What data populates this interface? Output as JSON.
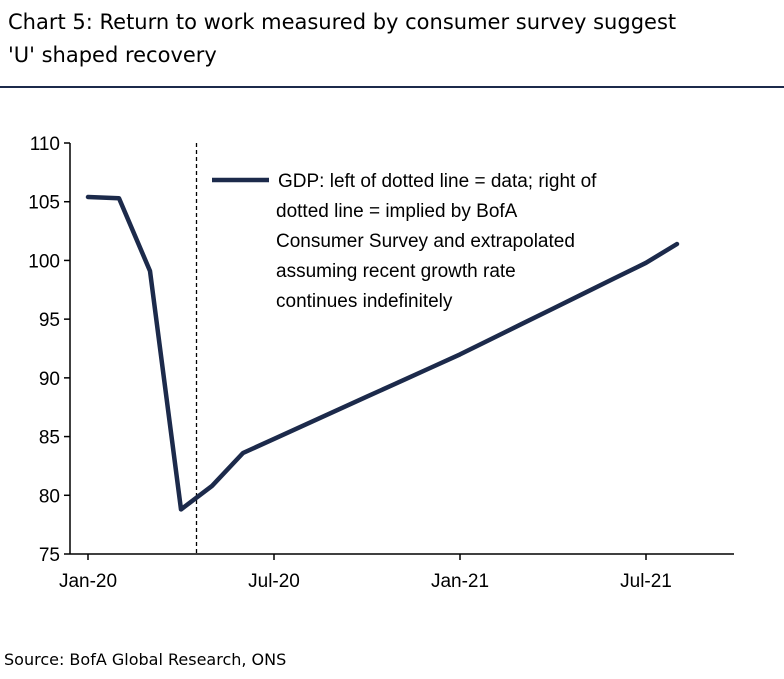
{
  "title": {
    "line1": "Chart 5: Return to work measured by consumer survey suggest",
    "line2": "'U' shaped recovery"
  },
  "source": "Source: BofA Global Research, ONS",
  "colors": {
    "series": "#1c2a4b",
    "rule": "#1c2a4b",
    "axis": "#000000"
  },
  "chart_data": {
    "type": "line",
    "title": "Chart 5: Return to work measured by consumer survey suggest 'U' shaped recovery",
    "xlabel": "",
    "ylabel": "",
    "ylim": [
      75,
      110
    ],
    "yticks": [
      75,
      80,
      85,
      90,
      95,
      100,
      105,
      110
    ],
    "xlim_months": [
      0,
      20
    ],
    "xticks": [
      {
        "label": "Jan-20",
        "month": 0
      },
      {
        "label": "Jul-20",
        "month": 6
      },
      {
        "label": "Jan-21",
        "month": 12
      },
      {
        "label": "Jul-21",
        "month": 18
      }
    ],
    "divider": {
      "month": 3.5,
      "style": "dotted",
      "meaning": "left = data; right = implied"
    },
    "series": [
      {
        "name": "GDP",
        "points": [
          {
            "month": 0,
            "value": 105.4
          },
          {
            "month": 1,
            "value": 105.3
          },
          {
            "month": 2,
            "value": 99.1
          },
          {
            "month": 3,
            "value": 78.8
          },
          {
            "month": 4,
            "value": 80.8
          },
          {
            "month": 5,
            "value": 83.6
          },
          {
            "month": 6,
            "value": 84.8
          },
          {
            "month": 7,
            "value": 86.0
          },
          {
            "month": 8,
            "value": 87.2
          },
          {
            "month": 9,
            "value": 88.4
          },
          {
            "month": 10,
            "value": 89.6
          },
          {
            "month": 11,
            "value": 90.8
          },
          {
            "month": 12,
            "value": 92.0
          },
          {
            "month": 13,
            "value": 93.3
          },
          {
            "month": 14,
            "value": 94.6
          },
          {
            "month": 15,
            "value": 95.9
          },
          {
            "month": 16,
            "value": 97.2
          },
          {
            "month": 17,
            "value": 98.5
          },
          {
            "month": 18,
            "value": 99.8
          },
          {
            "month": 19,
            "value": 101.4
          }
        ]
      }
    ],
    "legend": {
      "position": "top-right",
      "lines": [
        "GDP: left of dotted line = data; right of",
        "dotted line = implied by BofA",
        "Consumer Survey and extrapolated",
        "assuming recent growth rate",
        "continues indefinitely"
      ]
    }
  }
}
